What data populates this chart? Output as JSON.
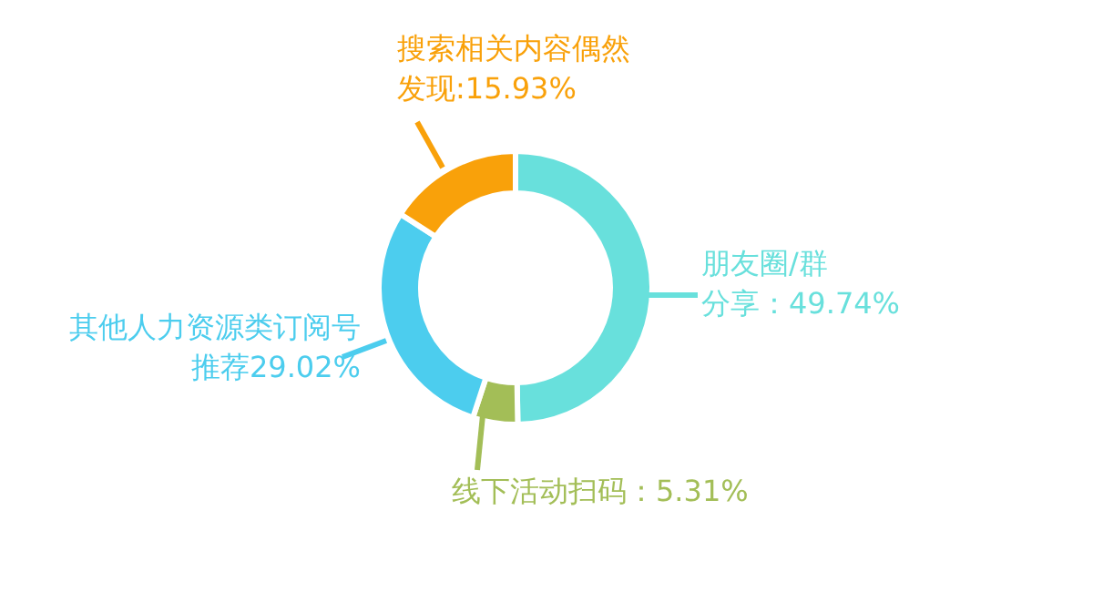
{
  "chart_data": {
    "type": "donut",
    "categories": [
      "朋友圈/群分享",
      "线下活动扫码",
      "其他人力资源类订阅号推荐",
      "搜索相关内容偶然发现"
    ],
    "values": [
      49.74,
      5.31,
      29.02,
      15.93
    ],
    "value_labels": [
      "：49.74%",
      "：5.31%",
      "29.02%",
      ":15.93%"
    ],
    "colors": [
      "#68e0dc",
      "#a3be57",
      "#4ccdee",
      "#f9a10a"
    ]
  }
}
